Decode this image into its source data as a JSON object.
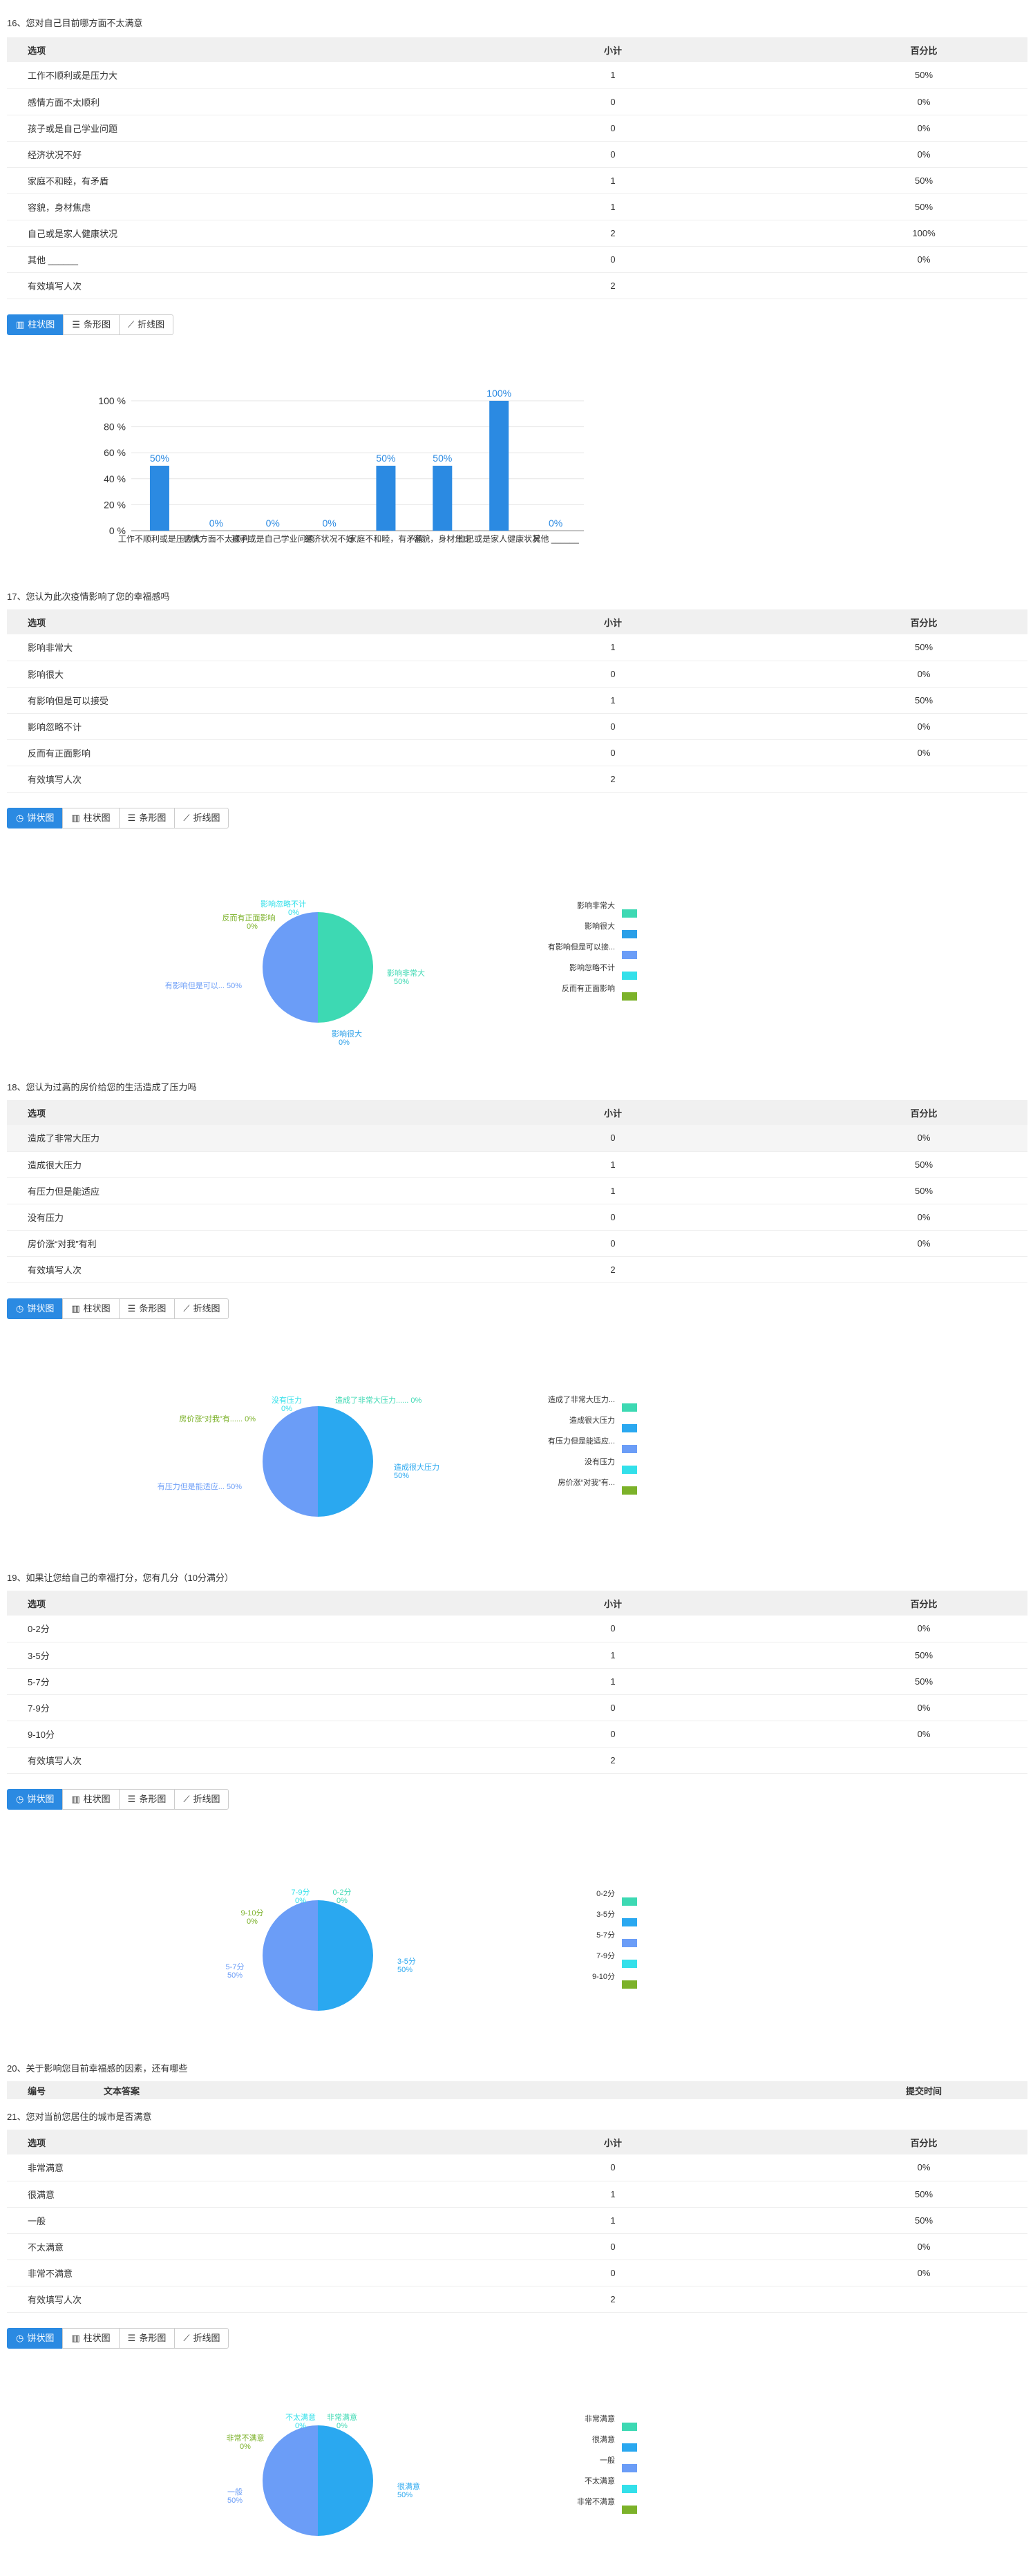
{
  "table_header": {
    "option": "选项",
    "count": "小计",
    "percent": "百分比"
  },
  "tabs": {
    "pie": "饼状图",
    "bar": "柱状图",
    "hbar": "条形图",
    "line": "折线图"
  },
  "q16": {
    "title": "16、您对自己目前哪方面不太满意",
    "rows": [
      {
        "label": "工作不顺利或是压力大",
        "count": "1",
        "pct": "50%"
      },
      {
        "label": "感情方面不太顺利",
        "count": "0",
        "pct": "0%"
      },
      {
        "label": "孩子或是自己学业问题",
        "count": "0",
        "pct": "0%"
      },
      {
        "label": "经济状况不好",
        "count": "0",
        "pct": "0%"
      },
      {
        "label": "家庭不和睦，有矛盾",
        "count": "1",
        "pct": "50%"
      },
      {
        "label": "容貌，身材焦虑",
        "count": "1",
        "pct": "50%"
      },
      {
        "label": "自己或是家人健康状况",
        "count": "2",
        "pct": "100%"
      },
      {
        "label": "其他 ______",
        "count": "0",
        "pct": "0%"
      }
    ],
    "valid_label": "有效填写人次",
    "valid": "2"
  },
  "q17": {
    "title": "17、您认为此次疫情影响了您的幸福感吗",
    "rows": [
      {
        "label": "影响非常大",
        "count": "1",
        "pct": "50%"
      },
      {
        "label": "影响很大",
        "count": "0",
        "pct": "0%"
      },
      {
        "label": "有影响但是可以接受",
        "count": "1",
        "pct": "50%"
      },
      {
        "label": "影响忽略不计",
        "count": "0",
        "pct": "0%"
      },
      {
        "label": "反而有正面影响",
        "count": "0",
        "pct": "0%"
      }
    ],
    "valid_label": "有效填写人次",
    "valid": "2"
  },
  "q18": {
    "title": "18、您认为过高的房价给您的生活造成了压力吗",
    "rows": [
      {
        "label": "造成了非常大压力",
        "count": "0",
        "pct": "0%"
      },
      {
        "label": "造成很大压力",
        "count": "1",
        "pct": "50%"
      },
      {
        "label": "有压力但是能适应",
        "count": "1",
        "pct": "50%"
      },
      {
        "label": "没有压力",
        "count": "0",
        "pct": "0%"
      },
      {
        "label": "房价涨“对我”有利",
        "count": "0",
        "pct": "0%"
      }
    ],
    "valid_label": "有效填写人次",
    "valid": "2"
  },
  "q19": {
    "title": "19、如果让您给自己的幸福打分，您有几分（10分满分）",
    "rows": [
      {
        "label": "0-2分",
        "count": "0",
        "pct": "0%"
      },
      {
        "label": "3-5分",
        "count": "1",
        "pct": "50%"
      },
      {
        "label": "5-7分",
        "count": "1",
        "pct": "50%"
      },
      {
        "label": "7-9分",
        "count": "0",
        "pct": "0%"
      },
      {
        "label": "9-10分",
        "count": "0",
        "pct": "0%"
      }
    ],
    "valid_label": "有效填写人次",
    "valid": "2"
  },
  "q20": {
    "title": "20、关于影响您目前幸福感的因素，还有哪些",
    "col_id": "编号",
    "col_text": "文本答案",
    "col_time": "提交时间"
  },
  "q21": {
    "title": "21、您对当前您居住的城市是否满意",
    "rows": [
      {
        "label": "非常满意",
        "count": "0",
        "pct": "0%"
      },
      {
        "label": "很满意",
        "count": "1",
        "pct": "50%"
      },
      {
        "label": "一般",
        "count": "1",
        "pct": "50%"
      },
      {
        "label": "不太满意",
        "count": "0",
        "pct": "0%"
      },
      {
        "label": "非常不满意",
        "count": "0",
        "pct": "0%"
      }
    ],
    "valid_label": "有效填写人次",
    "valid": "2"
  },
  "chart_data": [
    {
      "type": "bar",
      "categories": [
        "工作不顺利或是压力大",
        "感情方面不太顺利",
        "孩子或是自己学业问题",
        "经济状况不好",
        "家庭不和睦，有矛盾",
        "容貌，身材焦虑",
        "自己或是家人健康状况",
        "其他 ______"
      ],
      "values": [
        50,
        0,
        0,
        0,
        50,
        50,
        100,
        0
      ],
      "value_labels": [
        "50%",
        "0%",
        "0%",
        "0%",
        "50%",
        "50%",
        "100%",
        "0%"
      ],
      "yticks": [
        "0 %",
        "20 %",
        "40 %",
        "60 %",
        "80 %",
        "100 %"
      ],
      "ylim": [
        0,
        100
      ],
      "color": "#2b8ae2"
    },
    {
      "type": "pie",
      "labels": [
        "影响非常大",
        "影响很大",
        "有影响但是可以接受",
        "影响忽略不计",
        "反而有正面影响"
      ],
      "values": [
        50,
        0,
        50,
        0,
        0
      ],
      "pct_labels": [
        "50%",
        "0%",
        "50%",
        "0%",
        "0%"
      ],
      "slice_texts": [
        "影响非常大",
        "影响很大",
        "有影响但是可以... 50%",
        "影响忽略不计",
        "反而有正面影响"
      ],
      "legend_texts": [
        "影响非常大",
        "影响很大",
        "有影响但是可以接...",
        "影响忽略不计",
        "反而有正面影响"
      ],
      "colors": [
        "#3dd9b3",
        "#2a9fe8",
        "#6b9df7",
        "#33e0ea",
        "#7cb22a"
      ]
    },
    {
      "type": "pie",
      "labels": [
        "造成了非常大压力",
        "造成很大压力",
        "有压力但是能适应",
        "没有压力",
        "房价涨“对我”有利"
      ],
      "values": [
        0,
        50,
        50,
        0,
        0
      ],
      "pct_labels": [
        "0%",
        "50%",
        "50%",
        "0%",
        "0%"
      ],
      "slice_texts": [
        "造成了非常大压力...... 0%",
        "造成很大压力",
        "有压力但是能适应... 50%",
        "没有压力",
        "房价涨“对我”有...... 0%"
      ],
      "legend_texts": [
        "造成了非常大压力...",
        "造成很大压力",
        "有压力但是能适应...",
        "没有压力",
        "房价涨“对我”有..."
      ],
      "colors": [
        "#3dd9b3",
        "#2aa8f0",
        "#6b9df7",
        "#33e0ea",
        "#7cb22a"
      ]
    },
    {
      "type": "pie",
      "labels": [
        "0-2分",
        "3-5分",
        "5-7分",
        "7-9分",
        "9-10分"
      ],
      "values": [
        0,
        50,
        50,
        0,
        0
      ],
      "pct_labels": [
        "0%",
        "50%",
        "50%",
        "0%",
        "0%"
      ],
      "slice_texts": [
        "0-2分",
        "3-5分",
        "5-7分",
        "7-9分",
        "9-10分"
      ],
      "legend_texts": [
        "0-2分",
        "3-5分",
        "5-7分",
        "7-9分",
        "9-10分"
      ],
      "colors": [
        "#3dd9b3",
        "#2aa8f0",
        "#6b9df7",
        "#33e0ea",
        "#7cb22a"
      ]
    },
    {
      "type": "pie",
      "labels": [
        "非常满意",
        "很满意",
        "一般",
        "不太满意",
        "非常不满意"
      ],
      "values": [
        0,
        50,
        50,
        0,
        0
      ],
      "pct_labels": [
        "0%",
        "50%",
        "50%",
        "0%",
        "0%"
      ],
      "slice_texts": [
        "非常满意",
        "很满意",
        "一般",
        "不太满意",
        "非常不满意"
      ],
      "legend_texts": [
        "非常满意",
        "很满意",
        "一般",
        "不太满意",
        "非常不满意"
      ],
      "colors": [
        "#3dd9b3",
        "#2aa8f0",
        "#6b9df7",
        "#33e0ea",
        "#7cb22a"
      ]
    }
  ]
}
